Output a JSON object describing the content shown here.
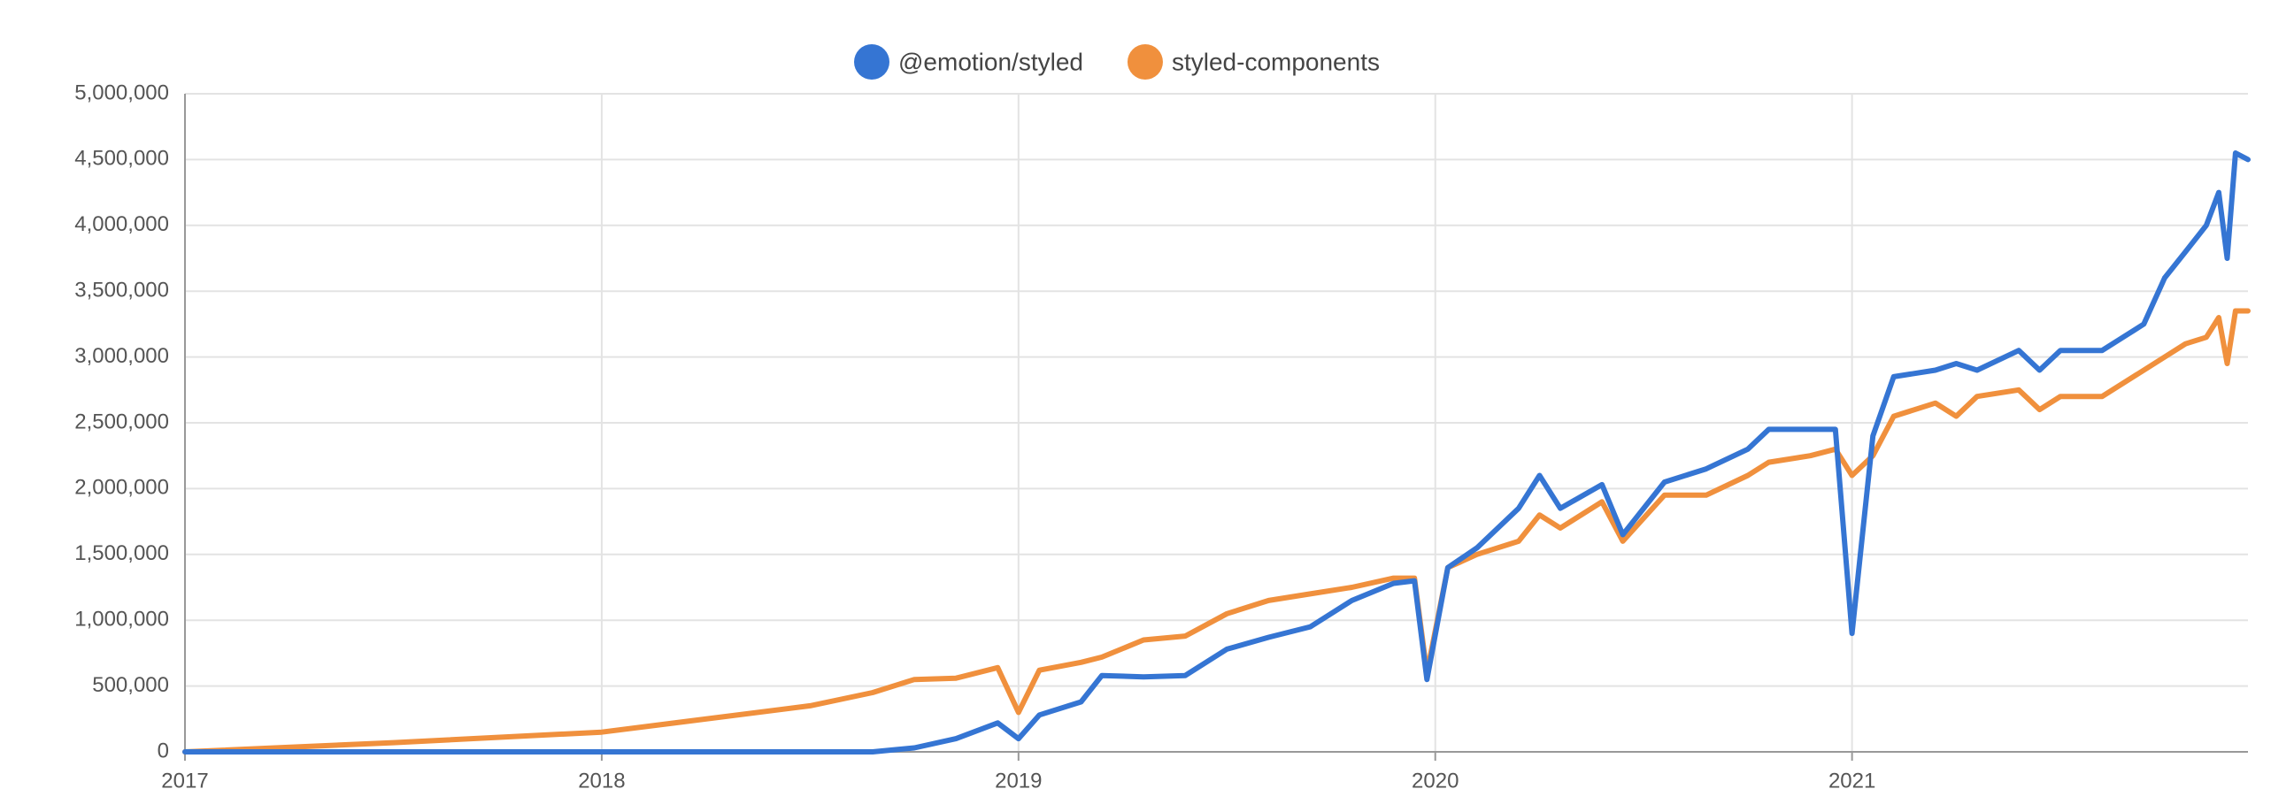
{
  "chart_data": {
    "type": "line",
    "x": [
      2017,
      2017.5,
      2018,
      2018.5,
      2018.65,
      2018.75,
      2018.85,
      2018.95,
      2019.0,
      2019.05,
      2019.15,
      2019.2,
      2019.3,
      2019.4,
      2019.5,
      2019.6,
      2019.7,
      2019.8,
      2019.9,
      2019.95,
      2019.98,
      2020.03,
      2020.1,
      2020.2,
      2020.25,
      2020.3,
      2020.4,
      2020.45,
      2020.55,
      2020.65,
      2020.75,
      2020.8,
      2020.9,
      2020.96,
      2021.0,
      2021.05,
      2021.1,
      2021.2,
      2021.25,
      2021.3,
      2021.4,
      2021.45,
      2021.5,
      2021.6,
      2021.7,
      2021.75,
      2021.8,
      2021.85,
      2021.88,
      2021.9,
      2021.92,
      2021.95
    ],
    "series": [
      {
        "name": "@emotion/styled",
        "color": "#3575d3",
        "values": [
          0,
          0,
          0,
          0,
          0,
          30000,
          100000,
          220000,
          100000,
          280000,
          380000,
          580000,
          570000,
          580000,
          780000,
          870000,
          950000,
          1150000,
          1280000,
          1300000,
          550000,
          1400000,
          1550000,
          1850000,
          2100000,
          1850000,
          2030000,
          1650000,
          2050000,
          2150000,
          2300000,
          2450000,
          2450000,
          2450000,
          900000,
          2400000,
          2850000,
          2900000,
          2950000,
          2900000,
          3050000,
          2900000,
          3050000,
          3050000,
          3250000,
          3600000,
          3800000,
          4000000,
          4250000,
          3750000,
          4550000,
          4500000
        ]
      },
      {
        "name": "styled-components",
        "color": "#f0903d",
        "values": [
          0,
          70000,
          150000,
          350000,
          450000,
          550000,
          560000,
          640000,
          300000,
          620000,
          680000,
          720000,
          850000,
          880000,
          1050000,
          1150000,
          1200000,
          1250000,
          1320000,
          1320000,
          600000,
          1400000,
          1500000,
          1600000,
          1800000,
          1700000,
          1900000,
          1600000,
          1950000,
          1950000,
          2100000,
          2200000,
          2250000,
          2300000,
          2100000,
          2250000,
          2550000,
          2650000,
          2550000,
          2700000,
          2750000,
          2600000,
          2700000,
          2700000,
          2900000,
          3000000,
          3100000,
          3150000,
          3300000,
          2950000,
          3350000,
          3350000
        ]
      }
    ],
    "xlim": [
      2017,
      2021.95
    ],
    "xticks": [
      2017,
      2018,
      2019,
      2020,
      2021
    ],
    "ylim": [
      0,
      5000000
    ],
    "yticks": [
      0,
      {
        "value": 500000,
        "label": "500,000"
      },
      {
        "value": 1000000,
        "label": "1,000,000"
      },
      {
        "value": 1500000,
        "label": "1,500,000"
      },
      {
        "value": 2000000,
        "label": "2,000,000"
      },
      {
        "value": 2500000,
        "label": "2,500,000"
      },
      {
        "value": 3000000,
        "label": "3,000,000"
      },
      {
        "value": 3500000,
        "label": "3,500,000"
      },
      {
        "value": 4000000,
        "label": "4,000,000"
      },
      {
        "value": 4500000,
        "label": "4,500,000"
      },
      {
        "value": 5000000,
        "label": "5,000,000"
      }
    ],
    "grid": true
  }
}
